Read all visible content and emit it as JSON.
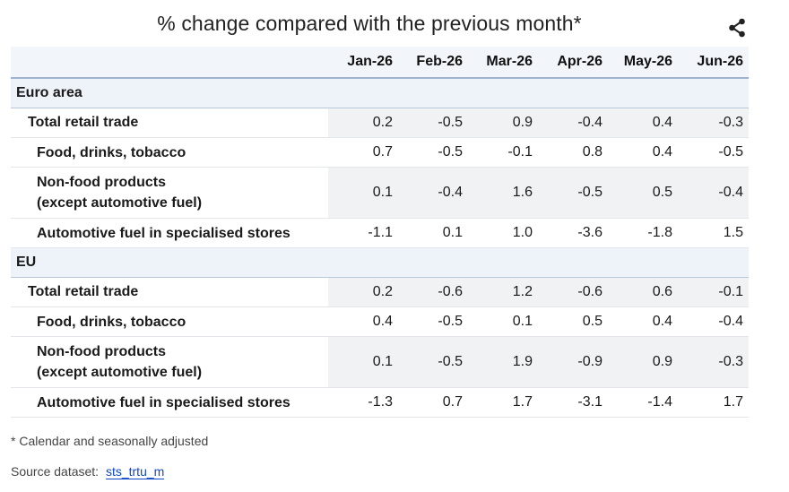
{
  "title": "% change compared with the previous month*",
  "icons": {
    "share": "share-icon"
  },
  "columns": [
    "Jan-26",
    "Feb-26",
    "Mar-26",
    "Apr-26",
    "May-26",
    "Jun-26"
  ],
  "groups": [
    {
      "name": "Euro area",
      "rows": [
        {
          "label": "Total retail trade",
          "values": [
            "0.2",
            "-0.5",
            "0.9",
            "-0.4",
            "0.4",
            "-0.3"
          ]
        },
        {
          "label": "Food, drinks, tobacco",
          "values": [
            "0.7",
            "-0.5",
            "-0.1",
            "0.8",
            "0.4",
            "-0.5"
          ]
        },
        {
          "label_line1": "Non-food products",
          "label_line2": "(except automotive fuel)",
          "values": [
            "0.1",
            "-0.4",
            "1.6",
            "-0.5",
            "0.5",
            "-0.4"
          ]
        },
        {
          "label": "Automotive fuel in specialised stores",
          "values": [
            "-1.1",
            "0.1",
            "1.0",
            "-3.6",
            "-1.8",
            "1.5"
          ]
        }
      ]
    },
    {
      "name": "EU",
      "rows": [
        {
          "label": "Total retail trade",
          "values": [
            "0.2",
            "-0.6",
            "1.2",
            "-0.6",
            "0.6",
            "-0.1"
          ]
        },
        {
          "label": "Food, drinks, tobacco",
          "values": [
            "0.4",
            "-0.5",
            "0.1",
            "0.5",
            "0.4",
            "-0.4"
          ]
        },
        {
          "label_line1": "Non-food products",
          "label_line2": "(except automotive fuel)",
          "values": [
            "0.1",
            "-0.5",
            "1.9",
            "-0.9",
            "0.9",
            "-0.3"
          ]
        },
        {
          "label": "Automotive fuel in specialised stores",
          "values": [
            "-1.3",
            "0.7",
            "1.7",
            "-3.1",
            "-1.4",
            "1.7"
          ]
        }
      ]
    }
  ],
  "footnote": "* Calendar and seasonally adjusted",
  "source": {
    "label": "Source dataset:",
    "link_text": "sts_trtu_m"
  }
}
